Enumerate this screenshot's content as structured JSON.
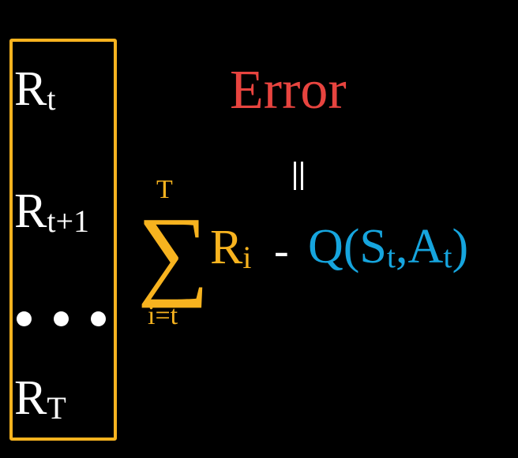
{
  "colors": {
    "background": "#000000",
    "box_and_sum": "#f7b31f",
    "error": "#e8443f",
    "q_value": "#16a5de",
    "text": "#ffffff"
  },
  "rewards": [
    {
      "base": "R",
      "sub": "t"
    },
    {
      "base": "R",
      "sub": "t+1"
    },
    {
      "ellipsis": "• • •"
    },
    {
      "base": "R",
      "sub": "T"
    }
  ],
  "error_label": "Error",
  "equals_symbol": "||",
  "sum": {
    "symbol": "∑",
    "upper": "T",
    "lower": "i=t",
    "term_base": "R",
    "term_sub": "i"
  },
  "minus": "-",
  "q": {
    "open": "Q(S",
    "s_sub": "t",
    "mid": ",A",
    "a_sub": "t",
    "close": ")"
  }
}
